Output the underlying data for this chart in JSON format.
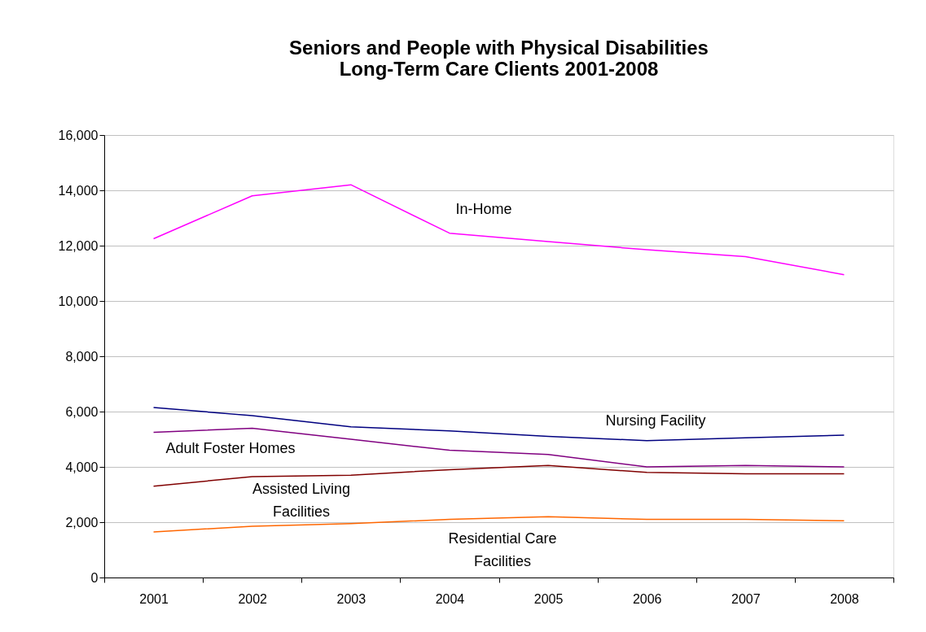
{
  "chart_data": {
    "type": "line",
    "title": [
      "Seniors and People with Physical Disabilities",
      "Long-Term Care Clients  2001-2008"
    ],
    "categories": [
      "2001",
      "2002",
      "2003",
      "2004",
      "2005",
      "2006",
      "2007",
      "2008"
    ],
    "series": [
      {
        "color": "#ff00ff",
        "values": [
          12250,
          13800,
          14200,
          12450,
          12150,
          11850,
          11600,
          10950
        ]
      },
      {
        "color": "#000080",
        "values": [
          6150,
          5850,
          5450,
          5300,
          5100,
          4950,
          5050,
          5150
        ]
      },
      {
        "color": "#800080",
        "values": [
          5250,
          5400,
          5000,
          4600,
          4450,
          4000,
          4050,
          4000
        ]
      },
      {
        "color": "#800000",
        "values": [
          3300,
          3650,
          3700,
          3900,
          4050,
          3800,
          3750,
          3750
        ]
      },
      {
        "color": "#ff6600",
        "values": [
          1650,
          1850,
          1950,
          2100,
          2200,
          2100,
          2100,
          2050
        ]
      }
    ],
    "annotations": [
      "In-Home",
      "Nursing Facility",
      "Adult Foster Homes",
      "Assisted Living\nFacilities",
      "Residential Care\nFacilities"
    ],
    "ylim": [
      0,
      16000
    ],
    "yticks": [
      0,
      {
        "value": 2000,
        "label": "2,000"
      },
      {
        "value": 4000,
        "label": "4,000"
      },
      {
        "value": 6000,
        "label": "6,000"
      },
      {
        "value": 8000,
        "label": "8,000"
      },
      {
        "value": 10000,
        "label": "10,000"
      },
      {
        "value": 12000,
        "label": "12,000"
      },
      {
        "value": 14000,
        "label": "14,000"
      },
      {
        "value": 16000,
        "label": "16,000"
      }
    ],
    "grid": "y",
    "marker": "none",
    "line_style": "solid"
  }
}
